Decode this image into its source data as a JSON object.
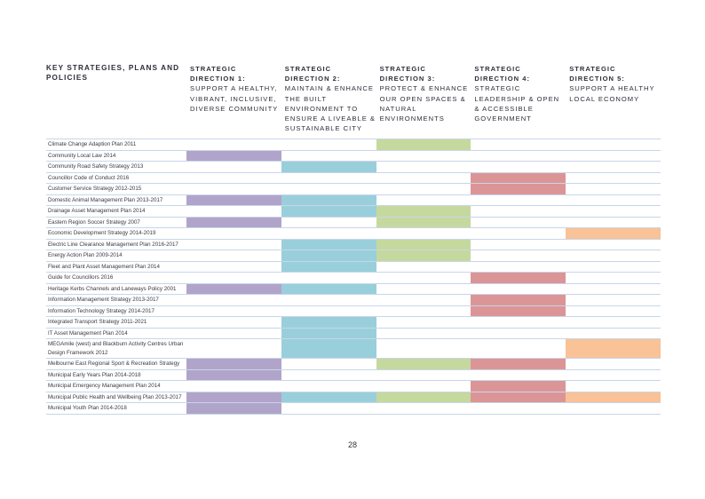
{
  "table_header": {
    "strategies_title": "KEY STRATEGIES, PLANS AND POLICIES",
    "directions": [
      {
        "num": "STRATEGIC DIRECTION 1:",
        "desc": "SUPPORT A HEALTHY, VIBRANT, INCLUSIVE, DIVERSE COMMUNITY"
      },
      {
        "num": "STRATEGIC DIRECTION 2:",
        "desc": "MAINTAIN & ENHANCE THE BUILT ENVIRONMENT TO ENSURE A LIVEABLE & SUSTAINABLE CITY"
      },
      {
        "num": "STRATEGIC DIRECTION 3:",
        "desc": "PROTECT & ENHANCE OUR OPEN SPACES & NATURAL ENVIRONMENTS"
      },
      {
        "num": "STRATEGIC DIRECTION 4:",
        "desc": "STRATEGIC LEADERSHIP & OPEN & ACCESSIBLE GOVERNMENT"
      },
      {
        "num": "STRATEGIC DIRECTION 5:",
        "desc": "SUPPORT A HEALTHY LOCAL ECONOMY"
      }
    ]
  },
  "colors": {
    "direction_1": "#b1a4cb",
    "direction_2": "#99cfdb",
    "direction_3": "#c5d99e",
    "direction_4": "#dc9596",
    "direction_5": "#f9c297"
  },
  "rows": [
    {
      "name": "Climate Change Adaption Plan 2011",
      "dirs": [
        0,
        0,
        1,
        0,
        0
      ]
    },
    {
      "name": "Community Local Law 2014",
      "dirs": [
        1,
        0,
        0,
        0,
        0
      ]
    },
    {
      "name": "Community Road Safety Strategy 2013",
      "dirs": [
        0,
        1,
        0,
        0,
        0
      ]
    },
    {
      "name": "Councillor Code of Conduct 2016",
      "dirs": [
        0,
        0,
        0,
        1,
        0
      ]
    },
    {
      "name": "Customer Service Strategy 2012-2015",
      "dirs": [
        0,
        0,
        0,
        1,
        0
      ]
    },
    {
      "name": "Domestic Animal Management Plan 2013-2017",
      "dirs": [
        1,
        1,
        0,
        0,
        0
      ]
    },
    {
      "name": "Drainage Asset Management Plan 2014",
      "dirs": [
        0,
        1,
        1,
        0,
        0
      ]
    },
    {
      "name": "Eastern Region Soccer Strategy 2007",
      "dirs": [
        1,
        0,
        1,
        0,
        0
      ]
    },
    {
      "name": "Economic Development Strategy 2014-2019",
      "dirs": [
        0,
        0,
        0,
        0,
        1
      ]
    },
    {
      "name": "Electric Line Clearance Management Plan 2016-2017",
      "dirs": [
        0,
        1,
        1,
        0,
        0
      ]
    },
    {
      "name": "Energy Action Plan 2009-2014",
      "dirs": [
        0,
        1,
        1,
        0,
        0
      ]
    },
    {
      "name": "Fleet and Plant Asset Management Plan 2014",
      "dirs": [
        0,
        1,
        0,
        0,
        0
      ]
    },
    {
      "name": "Guide for Councillors 2016",
      "dirs": [
        0,
        0,
        0,
        1,
        0
      ]
    },
    {
      "name": "Heritage Kerbs Channels and Laneways Policy 2001",
      "dirs": [
        1,
        1,
        0,
        0,
        0
      ]
    },
    {
      "name": "Information Management Strategy 2013-2017",
      "dirs": [
        0,
        0,
        0,
        1,
        0
      ]
    },
    {
      "name": "Information Technology Strategy 2014-2017",
      "dirs": [
        0,
        0,
        0,
        1,
        0
      ]
    },
    {
      "name": "Integrated Transport Strategy 2011-2021",
      "dirs": [
        0,
        1,
        0,
        0,
        0
      ]
    },
    {
      "name": "IT Asset Management Plan 2014",
      "dirs": [
        0,
        1,
        0,
        0,
        0
      ]
    },
    {
      "name": "MEGAmile (west) and Blackburn Activity Centres Urban Design Framework 2012",
      "dirs": [
        0,
        1,
        0,
        0,
        1
      ]
    },
    {
      "name": "Melbourne East Regional Sport & Recreation Strategy",
      "dirs": [
        1,
        0,
        1,
        1,
        0
      ]
    },
    {
      "name": "Municipal Early Years Plan 2014-2018",
      "dirs": [
        1,
        0,
        0,
        0,
        0
      ]
    },
    {
      "name": "Municipal Emergency Management Plan 2014",
      "dirs": [
        0,
        0,
        0,
        1,
        0
      ]
    },
    {
      "name": "Municipal Public Health and Wellbeing Plan 2013-2017",
      "dirs": [
        1,
        1,
        1,
        1,
        1
      ]
    },
    {
      "name": "Municipal Youth Plan 2014-2018",
      "dirs": [
        1,
        0,
        0,
        0,
        0
      ]
    }
  ],
  "page_number": "28"
}
